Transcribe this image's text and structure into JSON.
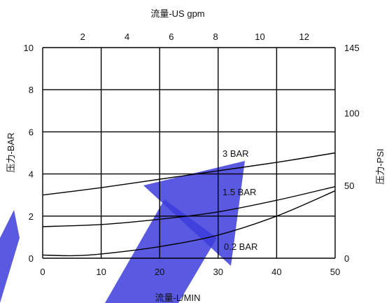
{
  "chart_data": {
    "type": "line",
    "title": "流量-US gpm",
    "xlabel": "流量-L/MIN",
    "ylabel": "压力-BAR",
    "y2label": "压力-PSI",
    "xlim": [
      0,
      50
    ],
    "ylim": [
      0,
      10
    ],
    "x_ticks": [
      0,
      10,
      20,
      30,
      40,
      50
    ],
    "y_ticks": [
      0,
      2,
      4,
      6,
      8,
      10
    ],
    "top_ticks": [
      2,
      4,
      6,
      8,
      10,
      12
    ],
    "right_ticks": [
      0,
      50,
      100,
      145
    ],
    "grid": true,
    "accent_color": "#3c3cdc",
    "series": [
      {
        "name": "3 BAR",
        "x": [
          0,
          10,
          20,
          30,
          40,
          50
        ],
        "y": [
          3.0,
          3.35,
          3.75,
          4.15,
          4.55,
          5.0
        ]
      },
      {
        "name": "1.5 BAR",
        "x": [
          0,
          10,
          20,
          30,
          40,
          50
        ],
        "y": [
          1.5,
          1.6,
          1.85,
          2.2,
          2.75,
          3.4
        ]
      },
      {
        "name": "0.2 BAR",
        "x": [
          0,
          5,
          10,
          20,
          30,
          40,
          50
        ],
        "y": [
          0.15,
          0.12,
          0.2,
          0.55,
          1.1,
          2.0,
          3.2
        ]
      }
    ]
  }
}
